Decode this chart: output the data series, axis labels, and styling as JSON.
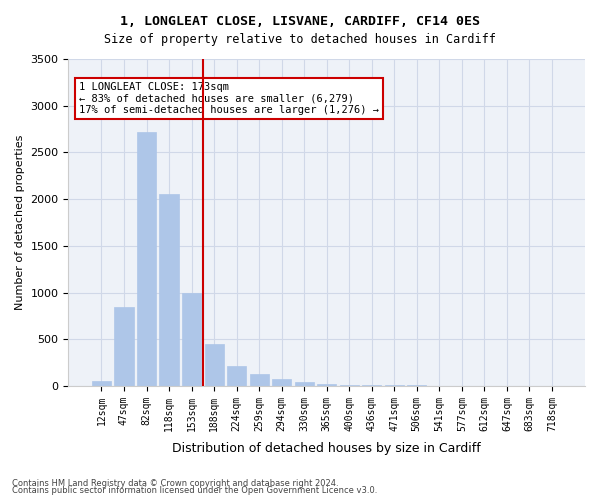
{
  "title1": "1, LONGLEAT CLOSE, LISVANE, CARDIFF, CF14 0ES",
  "title2": "Size of property relative to detached houses in Cardiff",
  "xlabel": "Distribution of detached houses by size in Cardiff",
  "ylabel": "Number of detached properties",
  "bar_labels": [
    "12sqm",
    "47sqm",
    "82sqm",
    "118sqm",
    "153sqm",
    "188sqm",
    "224sqm",
    "259sqm",
    "294sqm",
    "330sqm",
    "365sqm",
    "400sqm",
    "436sqm",
    "471sqm",
    "506sqm",
    "541sqm",
    "577sqm",
    "612sqm",
    "647sqm",
    "683sqm",
    "718sqm"
  ],
  "bar_values": [
    55,
    840,
    2720,
    2060,
    1000,
    450,
    210,
    130,
    70,
    40,
    25,
    15,
    10,
    5,
    5,
    3,
    2,
    2,
    1,
    1,
    1
  ],
  "bar_color": "#aec6e8",
  "bar_edge_color": "#aec6e8",
  "grid_color": "#d0d8e8",
  "background_color": "#eef2f8",
  "ylim": [
    0,
    3500
  ],
  "yticks": [
    0,
    500,
    1000,
    1500,
    2000,
    2500,
    3000,
    3500
  ],
  "vline_x": 5,
  "vline_color": "#cc0000",
  "annotation_text": "1 LONGLEAT CLOSE: 173sqm\n← 83% of detached houses are smaller (6,279)\n17% of semi-detached houses are larger (1,276) →",
  "annotation_box_color": "#ffffff",
  "annotation_box_edge": "#cc0000",
  "footnote1": "Contains HM Land Registry data © Crown copyright and database right 2024.",
  "footnote2": "Contains public sector information licensed under the Open Government Licence v3.0."
}
